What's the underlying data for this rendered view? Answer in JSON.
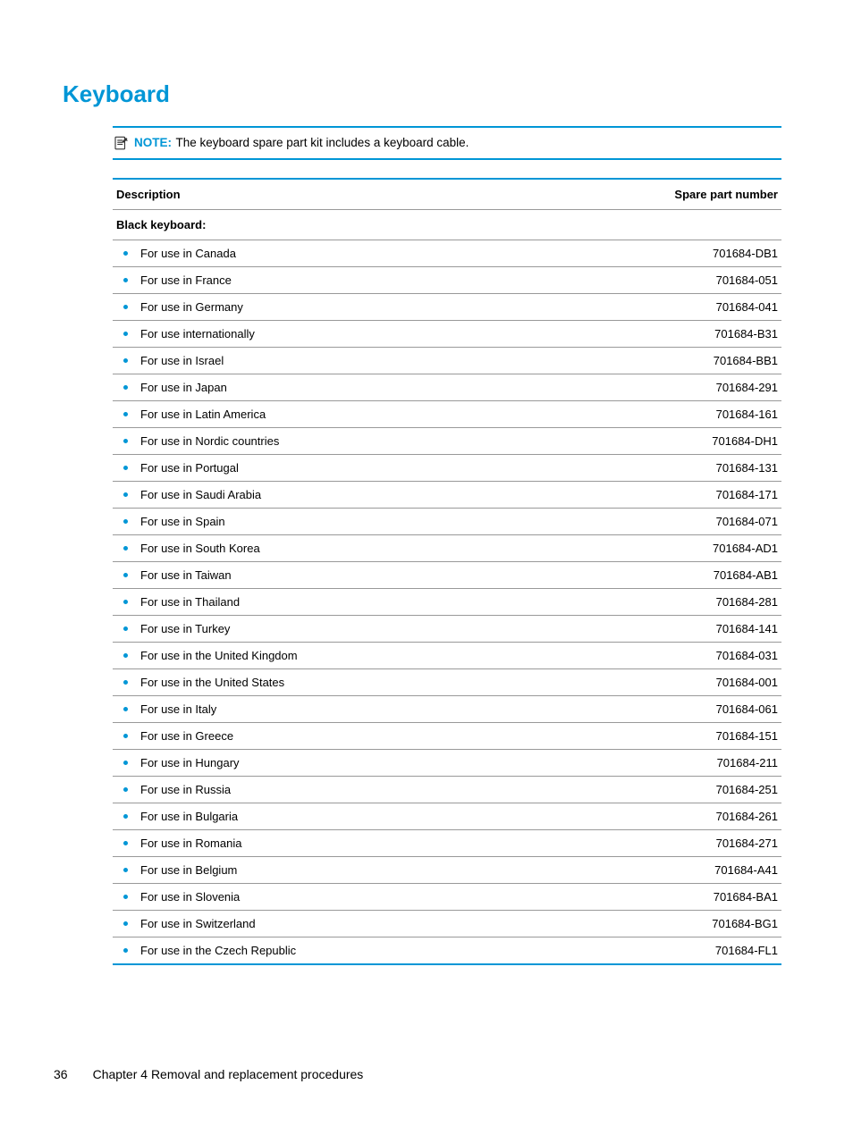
{
  "heading": "Keyboard",
  "note": {
    "label": "NOTE:",
    "text": "The keyboard spare part kit includes a keyboard cable."
  },
  "table": {
    "header_desc": "Description",
    "header_part": "Spare part number",
    "subheading": "Black keyboard:",
    "rows": [
      {
        "desc": "For use in Canada",
        "part": "701684-DB1"
      },
      {
        "desc": "For use in France",
        "part": "701684-051"
      },
      {
        "desc": "For use in Germany",
        "part": "701684-041"
      },
      {
        "desc": "For use internationally",
        "part": "701684-B31"
      },
      {
        "desc": "For use in Israel",
        "part": "701684-BB1"
      },
      {
        "desc": "For use in Japan",
        "part": "701684-291"
      },
      {
        "desc": "For use in Latin America",
        "part": "701684-161"
      },
      {
        "desc": "For use in Nordic countries",
        "part": "701684-DH1"
      },
      {
        "desc": "For use in Portugal",
        "part": "701684-131"
      },
      {
        "desc": "For use in Saudi Arabia",
        "part": "701684-171"
      },
      {
        "desc": "For use in Spain",
        "part": "701684-071"
      },
      {
        "desc": "For use in South Korea",
        "part": "701684-AD1"
      },
      {
        "desc": "For use in Taiwan",
        "part": "701684-AB1"
      },
      {
        "desc": "For use in Thailand",
        "part": "701684-281"
      },
      {
        "desc": "For use in Turkey",
        "part": "701684-141"
      },
      {
        "desc": "For use in the United Kingdom",
        "part": "701684-031"
      },
      {
        "desc": "For use in the United States",
        "part": "701684-001"
      },
      {
        "desc": "For use in Italy",
        "part": "701684-061"
      },
      {
        "desc": "For use in Greece",
        "part": "701684-151"
      },
      {
        "desc": "For use in Hungary",
        "part": "701684-211"
      },
      {
        "desc": "For use in Russia",
        "part": "701684-251"
      },
      {
        "desc": "For use in Bulgaria",
        "part": "701684-261"
      },
      {
        "desc": "For use in Romania",
        "part": "701684-271"
      },
      {
        "desc": "For use in Belgium",
        "part": "701684-A41"
      },
      {
        "desc": "For use in Slovenia",
        "part": "701684-BA1"
      },
      {
        "desc": "For use in Switzerland",
        "part": "701684-BG1"
      },
      {
        "desc": "For use in the Czech Republic",
        "part": "701684-FL1"
      }
    ]
  },
  "footer": {
    "page": "36",
    "chapter": "Chapter 4   Removal and replacement procedures"
  },
  "colors": {
    "accent": "#0096d6",
    "border_gray": "#999999",
    "text": "#000000",
    "background": "#ffffff"
  },
  "typography": {
    "heading_size": 26,
    "body_size": 13,
    "note_size": 13.5,
    "footer_size": 14
  }
}
